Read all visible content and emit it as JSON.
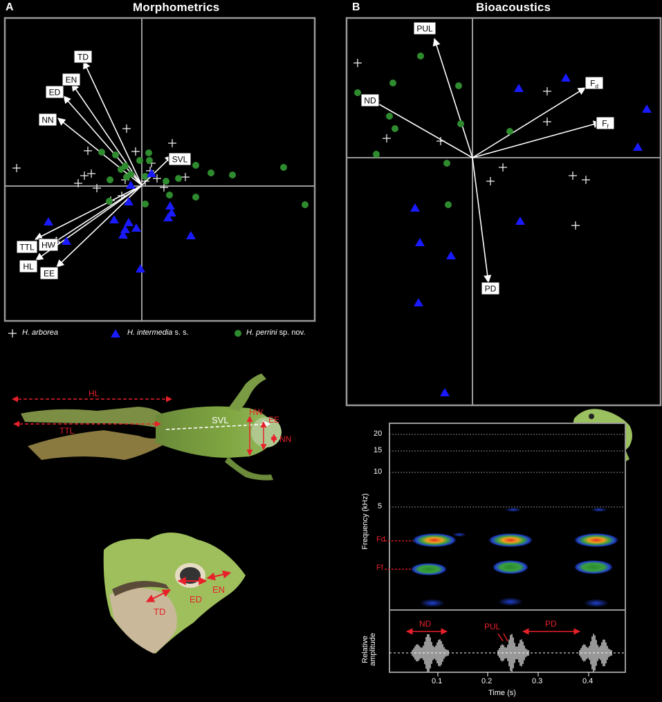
{
  "panel_a": {
    "letter": "A",
    "title": "Morphometrics",
    "vectors": [
      {
        "label": "TD"
      },
      {
        "label": "EN"
      },
      {
        "label": "ED"
      },
      {
        "label": "NN"
      },
      {
        "label": "SVL"
      },
      {
        "label": "TTL"
      },
      {
        "label": "HW"
      },
      {
        "label": "HL"
      },
      {
        "label": "EE"
      }
    ]
  },
  "panel_b": {
    "letter": "B",
    "title": "Bioacoustics",
    "vectors": [
      {
        "label": "PUL"
      },
      {
        "label": "ND"
      },
      {
        "label": "Fd"
      },
      {
        "label": "Ff"
      },
      {
        "label": "PD"
      }
    ]
  },
  "legend": {
    "items": [
      {
        "species": "H. arborea",
        "suffix": "",
        "marker": "cross",
        "color": "#ffffff"
      },
      {
        "species": "H. intermedia",
        "suffix": " s. s.",
        "marker": "triangle",
        "color": "#1a1aff"
      },
      {
        "species": "H. perrini",
        "suffix": " sp. nov.",
        "marker": "circle",
        "color": "#2e8b2e"
      }
    ]
  },
  "frog_body": {
    "labels": [
      "HL",
      "TTL",
      "SVL",
      "HW",
      "EE",
      "NN"
    ]
  },
  "frog_head": {
    "labels": [
      "TD",
      "ED",
      "EN"
    ]
  },
  "spectrogram": {
    "ylabel_top": "Frequency (kHz)",
    "ylabel_bottom": "Relative amplitude",
    "yticks": [
      "20",
      "15",
      "10",
      "5"
    ],
    "freq_labels": [
      "Fd",
      "Ff"
    ],
    "xlabel": "Time (s)",
    "xticks": [
      "0.1",
      "0.2",
      "0.3",
      "0.4"
    ],
    "annotations": [
      "ND",
      "PUL",
      "PD"
    ]
  },
  "colors": {
    "measure_red": "#e8202a",
    "species_blue": "#1a1aff",
    "species_green": "#2e8b2e",
    "frog_green": "#7fa640"
  }
}
